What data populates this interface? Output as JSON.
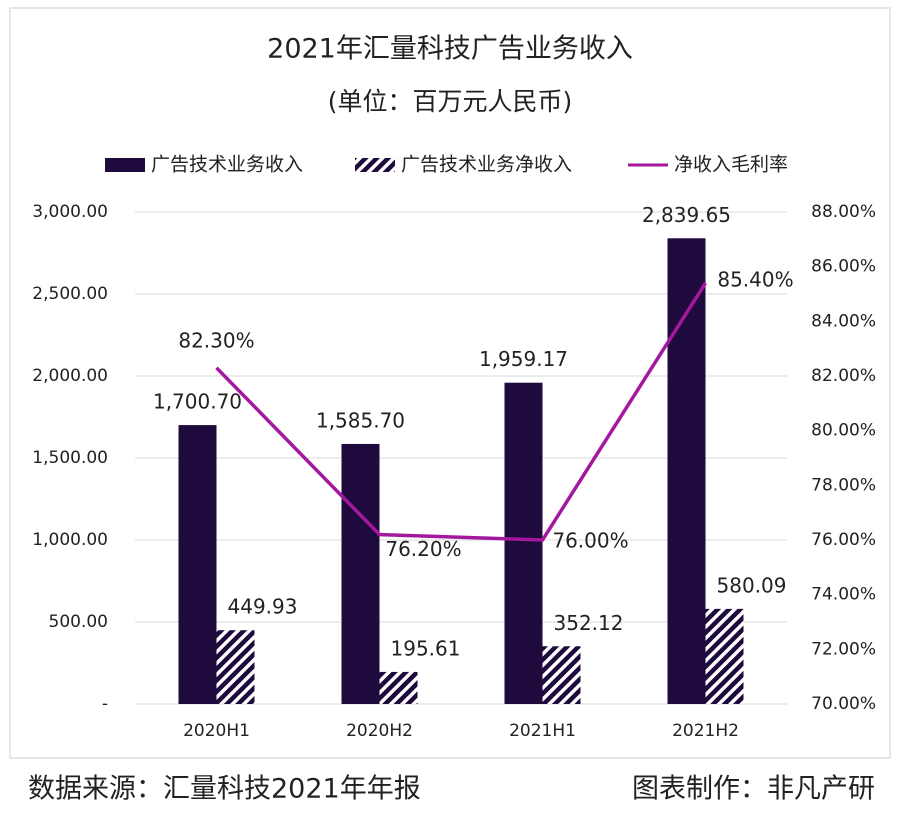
{
  "chart_data": {
    "type": "bar_line",
    "title": "2021年汇量科技广告业务收入",
    "subtitle": "(单位：百万元人民币)",
    "categories": [
      "2020H1",
      "2020H2",
      "2021H1",
      "2021H2"
    ],
    "series": [
      {
        "name": "广告技术业务收入",
        "type": "bar",
        "color": "#1e0a3c",
        "pattern": "solid",
        "values": [
          1700.7,
          1585.7,
          1959.17,
          2839.65
        ],
        "value_labels": [
          "1,700.70",
          "1,585.70",
          "1,959.17",
          "2,839.65"
        ]
      },
      {
        "name": "广告技术业务净收入",
        "type": "bar",
        "color": "#1e0a3c",
        "pattern": "hatch",
        "values": [
          449.93,
          195.61,
          352.12,
          580.09
        ]
      },
      {
        "name": "净收入毛利率",
        "type": "line",
        "axis": "y2",
        "color": "#a3189e",
        "values": [
          82.3,
          76.2,
          76.0,
          85.4
        ],
        "value_labels": [
          "82.30%",
          "76.20%",
          "76.00%",
          "85.40%"
        ]
      }
    ],
    "ylim": [
      0,
      3000
    ],
    "yticks": [
      {
        "value": 0,
        "label": "-"
      },
      {
        "value": 500,
        "label": "500.00"
      },
      {
        "value": 1000,
        "label": "1,000.00"
      },
      {
        "value": 1500,
        "label": "1,500.00"
      },
      {
        "value": 2000,
        "label": "2,000.00"
      },
      {
        "value": 2500,
        "label": "2,500.00"
      },
      {
        "value": 3000,
        "label": "3,000.00"
      }
    ],
    "y2lim": [
      70,
      88
    ],
    "y2ticks": [
      {
        "value": 70,
        "label": "70.00%"
      },
      {
        "value": 72,
        "label": "72.00%"
      },
      {
        "value": 74,
        "label": "74.00%"
      },
      {
        "value": 76,
        "label": "76.00%"
      },
      {
        "value": 78,
        "label": "78.00%"
      },
      {
        "value": 80,
        "label": "80.00%"
      },
      {
        "value": 82,
        "label": "82.00%"
      },
      {
        "value": 84,
        "label": "84.00%"
      },
      {
        "value": 86,
        "label": "86.00%"
      },
      {
        "value": 88,
        "label": "88.00%"
      }
    ],
    "grid": true,
    "source": "数据来源：汇量科技2021年年报",
    "credit": "图表制作：非凡产研"
  }
}
